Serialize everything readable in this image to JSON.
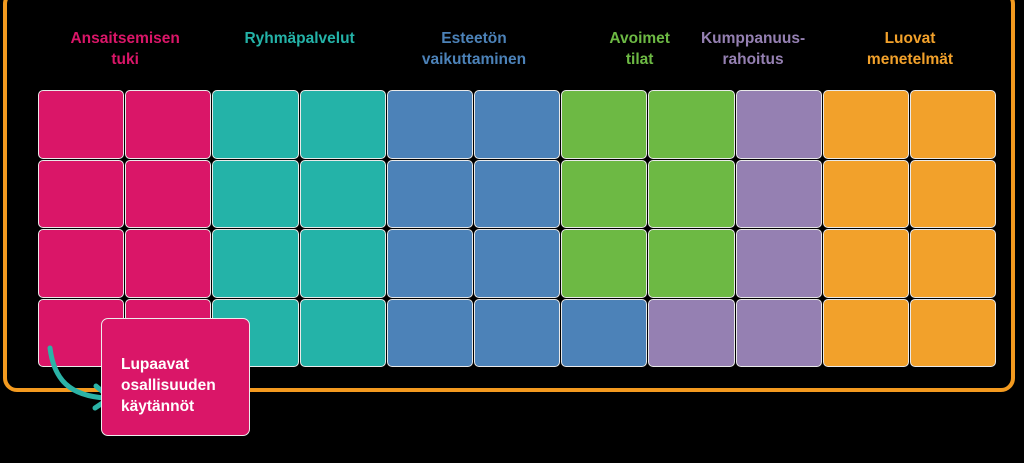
{
  "colors": {
    "magenta": "#da1668",
    "teal": "#24b3a8",
    "blue": "#4c82b8",
    "green": "#6db944",
    "purple": "#9580b2",
    "orange": "#f2a12b",
    "frame": "#f39a1f",
    "arrow": "#2bb3a6"
  },
  "headers": [
    {
      "text": "Ansaitsemisen\ntuki",
      "color": "magenta",
      "col": 1
    },
    {
      "text": "Ryhmäpalvelut",
      "color": "teal",
      "col": 3
    },
    {
      "text": "Esteetön\nvaikuttaminen",
      "color": "blue",
      "col": 5
    },
    {
      "text": "Avoimet\ntilat",
      "color": "green",
      "col": 6.9
    },
    {
      "text": "Kumppanuus-\nrahoitus",
      "color": "purple",
      "col": 8.2
    },
    {
      "text": "Luovat\nmenetelmät",
      "color": "orange",
      "col": 10
    }
  ],
  "grid": [
    [
      "magenta",
      "magenta",
      "teal",
      "teal",
      "blue",
      "blue",
      "green",
      "green",
      "purple",
      "orange",
      "orange"
    ],
    [
      "magenta",
      "magenta",
      "teal",
      "teal",
      "blue",
      "blue",
      "green",
      "green",
      "purple",
      "orange",
      "orange"
    ],
    [
      "magenta",
      "magenta",
      "teal",
      "teal",
      "blue",
      "blue",
      "green",
      "green",
      "purple",
      "orange",
      "orange"
    ],
    [
      "magenta",
      "magenta",
      "teal",
      "teal",
      "blue",
      "blue",
      "blue",
      "purple",
      "purple",
      "orange",
      "orange"
    ]
  ],
  "callout": {
    "text": "Lupaavat\nosallisuuden\nkäytännöt"
  }
}
